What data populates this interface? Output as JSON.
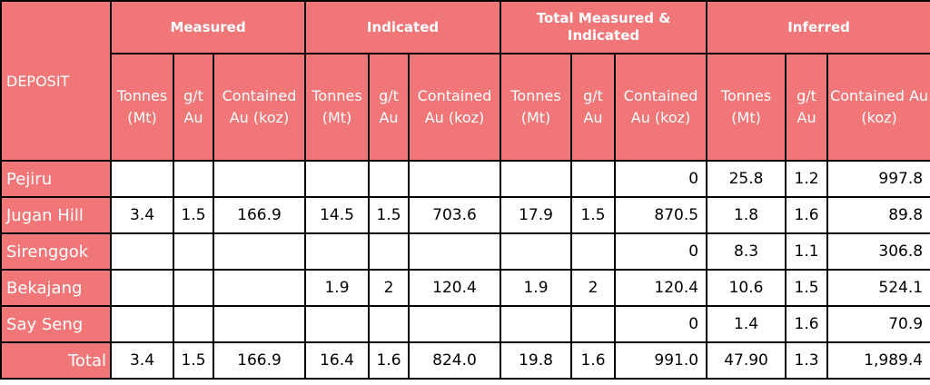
{
  "header": {
    "deposit": "DEPOSIT",
    "groups": [
      "Measured",
      "Indicated",
      "Total Measured &\nIndicated",
      "Inferred"
    ],
    "sub": {
      "tonnes": "Tonnes (Mt)",
      "grade": "g/t Au",
      "contained": "Contained Au (koz)"
    }
  },
  "rows": [
    {
      "name": "Pejiru",
      "cells": [
        "",
        "",
        "",
        "",
        "",
        "",
        "",
        "",
        "0",
        "25.8",
        "1.2",
        "997.8"
      ]
    },
    {
      "name": "Jugan Hill",
      "cells": [
        "3.4",
        "1.5",
        "166.9",
        "14.5",
        "1.5",
        "703.6",
        "17.9",
        "1.5",
        "870.5",
        "1.8",
        "1.6",
        "89.8"
      ]
    },
    {
      "name": "Sirenggok",
      "cells": [
        "",
        "",
        "",
        "",
        "",
        "",
        "",
        "",
        "0",
        "8.3",
        "1.1",
        "306.8"
      ]
    },
    {
      "name": "Bekajang",
      "cells": [
        "",
        "",
        "",
        "1.9",
        "2",
        "120.4",
        "1.9",
        "2",
        "120.4",
        "10.6",
        "1.5",
        "524.1"
      ]
    },
    {
      "name": "Say Seng",
      "cells": [
        "",
        "",
        "",
        "",
        "",
        "",
        "",
        "",
        "0",
        "1.4",
        "1.6",
        "70.9"
      ]
    },
    {
      "name": "Total",
      "cells": [
        "3.4",
        "1.5",
        "166.9",
        "16.4",
        "1.6",
        "824.0",
        "19.8",
        "1.6",
        "991.0",
        "47.90",
        "1.3",
        "1,989.4"
      ]
    }
  ]
}
